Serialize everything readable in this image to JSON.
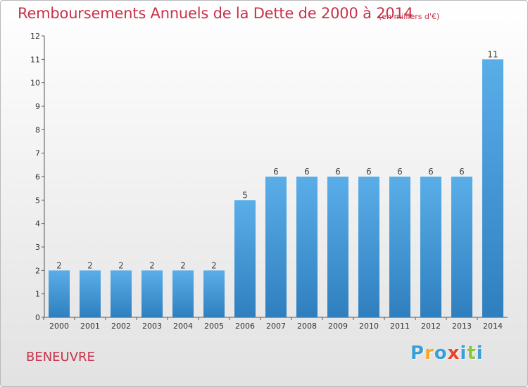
{
  "header": {
    "title": "Remboursements Annuels de la Dette de 2000 à 2014",
    "subtitle": "(en milliers d'€)"
  },
  "footer": {
    "commune": "BENEUVRE",
    "brand": [
      "P",
      "r",
      "o",
      "x",
      "i",
      "t",
      "i"
    ],
    "brand_colors": [
      "#3aa0d8",
      "#f7a823",
      "#3aa0d8",
      "#e8432c",
      "#3aa0d8",
      "#8cc63f",
      "#3aa0d8"
    ]
  },
  "chart_data": {
    "type": "bar",
    "categories": [
      "2000",
      "2001",
      "2002",
      "2003",
      "2004",
      "2005",
      "2006",
      "2007",
      "2008",
      "2009",
      "2010",
      "2011",
      "2012",
      "2013",
      "2014"
    ],
    "values": [
      2,
      2,
      2,
      2,
      2,
      2,
      5,
      6,
      6,
      6,
      6,
      6,
      6,
      6,
      11
    ],
    "data_labels": [
      "2",
      "2",
      "2",
      "2",
      "2",
      "2",
      "5",
      "6",
      "6",
      "6",
      "6",
      "6",
      "6",
      "6",
      "11"
    ],
    "ylim": [
      0,
      12
    ],
    "yticks": [
      "0",
      "1",
      "2",
      "3",
      "4",
      "5",
      "6",
      "7",
      "8",
      "9",
      "10",
      "11",
      "12"
    ],
    "bar_color_light": "#5aaee8",
    "bar_color_dark": "#2f7fbf",
    "grid": false
  }
}
